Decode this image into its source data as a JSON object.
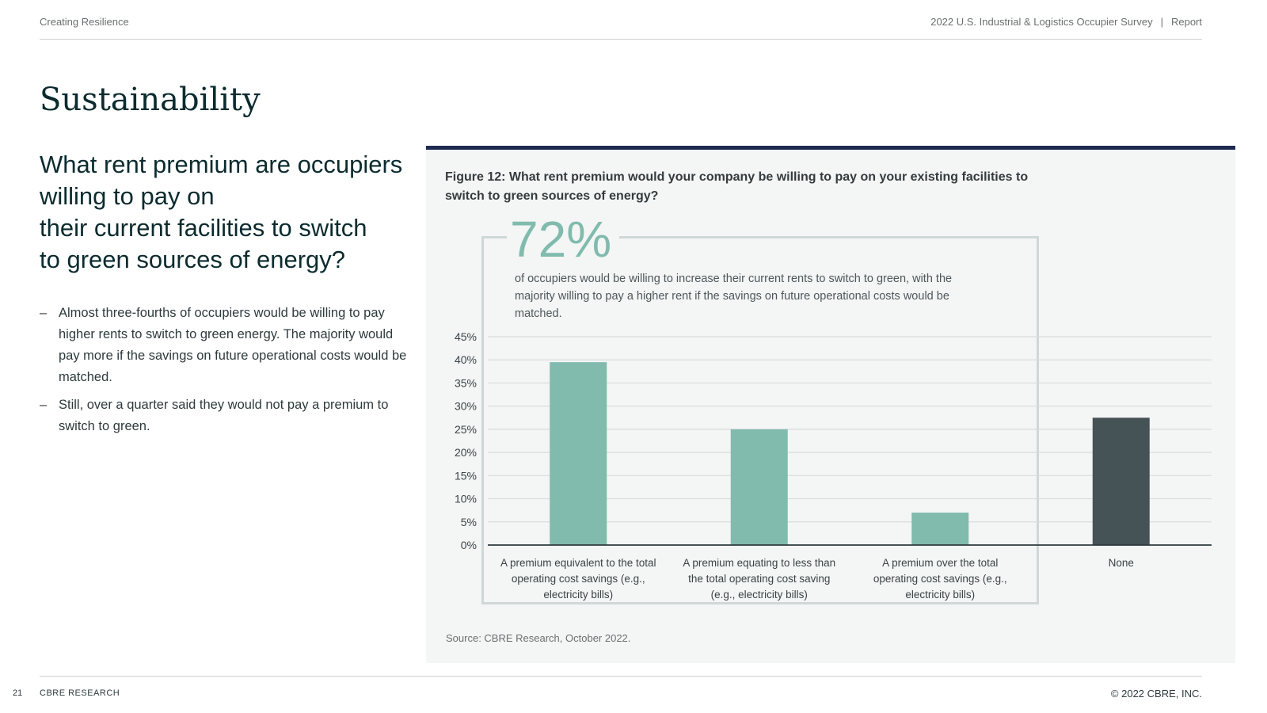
{
  "header": {
    "left": "Creating Resilience",
    "right_title": "2022 U.S. Industrial & Logistics Occupier Survey",
    "separator": "|",
    "right_label": "Report"
  },
  "page_title": "Sustainability",
  "question_lines": [
    "What rent premium are occupiers",
    "willing to pay on",
    "their current facilities to switch",
    "to green sources of energy?"
  ],
  "bullets": [
    "Almost three-fourths of occupiers would be willing to pay higher rents to switch to green energy. The majority would pay more if the savings on future operational costs would be matched.",
    "Still, over a quarter said they would not pay a premium to switch to green."
  ],
  "figure": {
    "title": "Figure 12: What rent premium would your company be willing to pay on your existing facilities to switch to green sources of energy?",
    "callout_value": "72%",
    "callout_text": "of occupiers would be willing to increase their current rents to switch to green, with the majority willing to pay a higher rent if the savings on future operational costs would be matched.",
    "source": "Source: CBRE Research, October 2022."
  },
  "chart_data": {
    "type": "bar",
    "title": "Figure 12: What rent premium would your company be willing to pay on your existing facilities to switch to green sources of energy?",
    "categories": [
      [
        "A premium equivalent to the total",
        "operating cost savings (e.g.,",
        "electricity bills)"
      ],
      [
        "A premium equating to less than",
        "the total operating cost saving",
        "(e.g., electricity bills)"
      ],
      [
        "A premium over the total",
        "operating cost savings (e.g.,",
        "electricity bills)"
      ],
      [
        "None"
      ]
    ],
    "values": [
      39.5,
      25,
      7,
      27.5
    ],
    "bar_colors": [
      "#80bbad",
      "#80bbad",
      "#80bbad",
      "#455256"
    ],
    "ylim": [
      0,
      45
    ],
    "yticks": [
      0,
      5,
      10,
      15,
      20,
      25,
      30,
      35,
      40,
      45
    ],
    "tick_suffix": "%",
    "grid": true,
    "xlabel": "",
    "ylabel": ""
  },
  "footer": {
    "page_number": "21",
    "left": "CBRE RESEARCH",
    "right": "© 2022 CBRE, INC."
  },
  "colors": {
    "accent_bar": "#80bbad",
    "none_bar": "#455256",
    "panel_top_rule": "#1c2b4f",
    "title_text": "#0b2b2f"
  }
}
